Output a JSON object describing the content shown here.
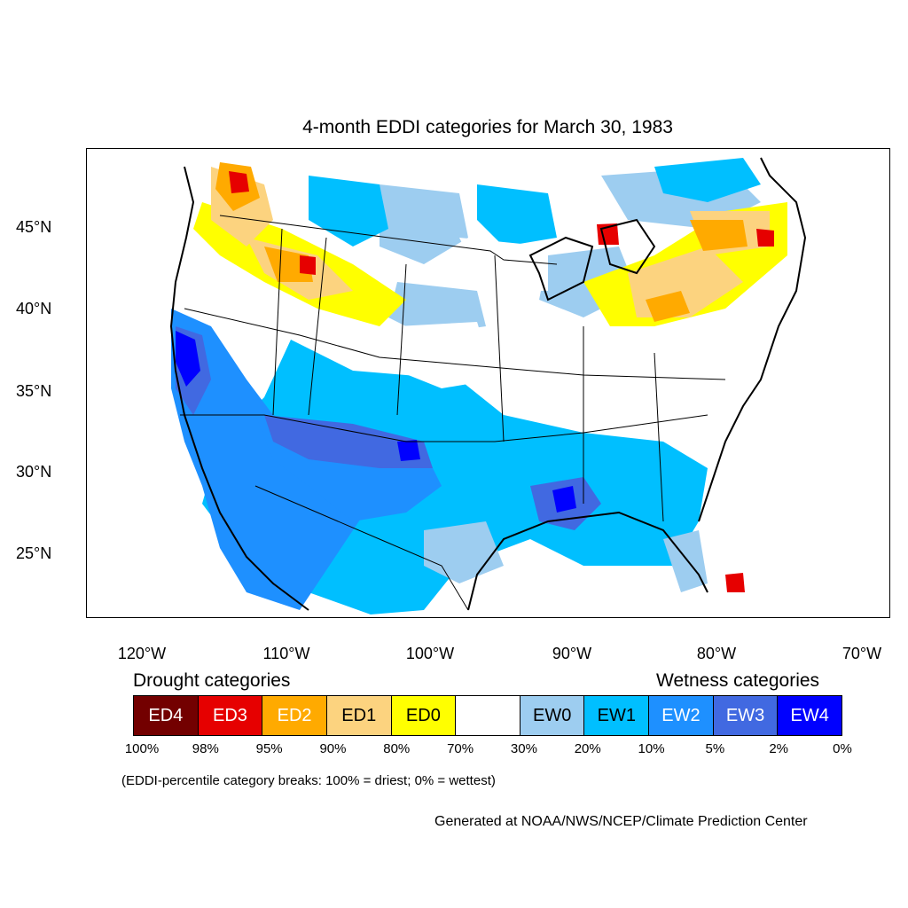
{
  "title": "4-month EDDI categories for March 30, 1983",
  "lat_labels": [
    "45°N",
    "40°N",
    "35°N",
    "30°N",
    "25°N"
  ],
  "lon_labels": [
    "120°W",
    "110°W",
    "100°W",
    "90°W",
    "80°W",
    "70°W"
  ],
  "legend": {
    "drought_heading": "Drought categories",
    "wetness_heading": "Wetness categories",
    "categories": [
      {
        "label": "ED4",
        "color": "#730000",
        "text_color": "#ffffff"
      },
      {
        "label": "ED3",
        "color": "#e60000",
        "text_color": "#ffffff"
      },
      {
        "label": "ED2",
        "color": "#ffaa00",
        "text_color": "#ffffff"
      },
      {
        "label": "ED1",
        "color": "#fcd37f",
        "text_color": "#000000"
      },
      {
        "label": "ED0",
        "color": "#ffff00",
        "text_color": "#000000"
      },
      {
        "label": "",
        "color": "#ffffff",
        "text_color": "#000000"
      },
      {
        "label": "EW0",
        "color": "#9dcdf0",
        "text_color": "#000000"
      },
      {
        "label": "EW1",
        "color": "#00bfff",
        "text_color": "#000000"
      },
      {
        "label": "EW2",
        "color": "#1e90ff",
        "text_color": "#ffffff"
      },
      {
        "label": "EW3",
        "color": "#4169e1",
        "text_color": "#ffffff"
      },
      {
        "label": "EW4",
        "color": "#0000ff",
        "text_color": "#ffffff"
      }
    ],
    "breaks": [
      "100%",
      "98%",
      "95%",
      "90%",
      "80%",
      "70%",
      "30%",
      "20%",
      "10%",
      "5%",
      "2%",
      "0%"
    ]
  },
  "note": "(EDDI-percentile category breaks: 100% = driest; 0% = wettest)",
  "credit": "Generated at NOAA/NWS/NCEP/Climate Prediction Center"
}
